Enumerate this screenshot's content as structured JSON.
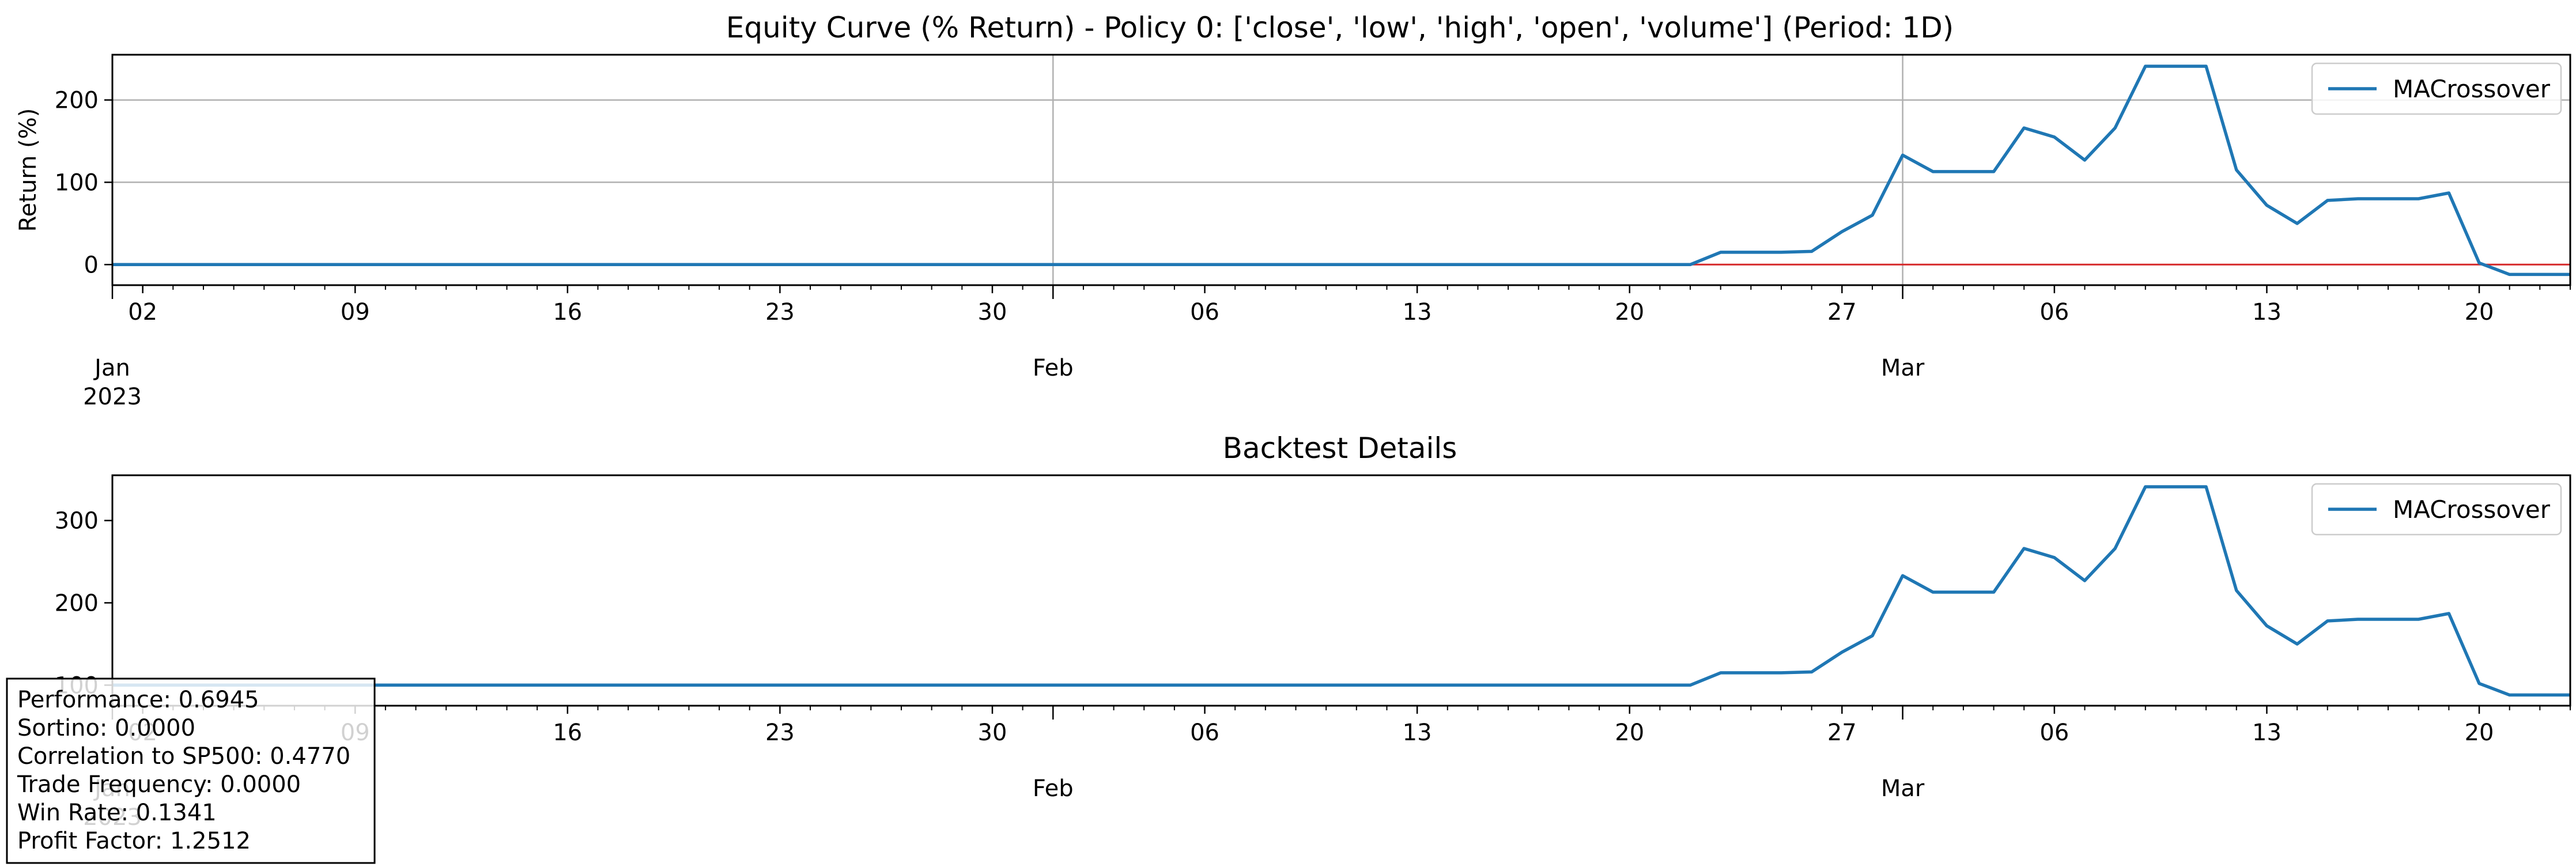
{
  "chart_data": [
    {
      "type": "line",
      "title": "Equity Curve (% Return) - Policy 0: ['close', 'low', 'high', 'open', 'volume'] (Period: 1D)",
      "xlabel": "",
      "ylabel": "Return (%)",
      "x_start": "2023-01-01",
      "x_end": "2023-03-23",
      "ylim": [
        -25,
        255
      ],
      "yticks": [
        0,
        100,
        200
      ],
      "grid": true,
      "legend_placement": "top-right",
      "reference_line": {
        "y": 0,
        "color": "#d62728"
      },
      "series": [
        {
          "name": "MACrossover",
          "color": "#1f77b4",
          "x": [
            "2023-01-01",
            "2023-02-22",
            "2023-02-23",
            "2023-02-24",
            "2023-02-25",
            "2023-02-26",
            "2023-02-27",
            "2023-02-28",
            "2023-03-01",
            "2023-03-02",
            "2023-03-03",
            "2023-03-04",
            "2023-03-05",
            "2023-03-06",
            "2023-03-07",
            "2023-03-08",
            "2023-03-09",
            "2023-03-10",
            "2023-03-11",
            "2023-03-12",
            "2023-03-13",
            "2023-03-14",
            "2023-03-15",
            "2023-03-16",
            "2023-03-17",
            "2023-03-18",
            "2023-03-19",
            "2023-03-20",
            "2023-03-21",
            "2023-03-22",
            "2023-03-23"
          ],
          "values": [
            0,
            0,
            15,
            15,
            15,
            16,
            40,
            60,
            133,
            113,
            113,
            113,
            166,
            155,
            127,
            166,
            241,
            241,
            241,
            115,
            72,
            50,
            78,
            80,
            80,
            80,
            87,
            2,
            -12,
            -12,
            -12
          ]
        }
      ]
    },
    {
      "type": "line",
      "title": "Backtest Details",
      "xlabel": "",
      "ylabel": "",
      "x_start": "2023-01-01",
      "x_end": "2023-03-23",
      "ylim": [
        75,
        355
      ],
      "yticks": [
        100,
        200,
        300
      ],
      "grid": false,
      "legend_placement": "top-right",
      "series": [
        {
          "name": "MACrossover",
          "color": "#1f77b4",
          "x": [
            "2023-01-01",
            "2023-02-22",
            "2023-02-23",
            "2023-02-24",
            "2023-02-25",
            "2023-02-26",
            "2023-02-27",
            "2023-02-28",
            "2023-03-01",
            "2023-03-02",
            "2023-03-03",
            "2023-03-04",
            "2023-03-05",
            "2023-03-06",
            "2023-03-07",
            "2023-03-08",
            "2023-03-09",
            "2023-03-10",
            "2023-03-11",
            "2023-03-12",
            "2023-03-13",
            "2023-03-14",
            "2023-03-15",
            "2023-03-16",
            "2023-03-17",
            "2023-03-18",
            "2023-03-19",
            "2023-03-20",
            "2023-03-21",
            "2023-03-22",
            "2023-03-23"
          ],
          "values": [
            100,
            100,
            115,
            115,
            115,
            116,
            140,
            160,
            233,
            213,
            213,
            213,
            266,
            255,
            227,
            266,
            341,
            341,
            341,
            215,
            172,
            150,
            178,
            180,
            180,
            180,
            187,
            102,
            88,
            88,
            88
          ]
        }
      ]
    }
  ],
  "x_axis": {
    "tick_labels": [
      "02",
      "09",
      "16",
      "23",
      "30",
      "06",
      "13",
      "20",
      "27",
      "06",
      "13",
      "20"
    ],
    "tick_dates": [
      "2023-01-02",
      "2023-01-09",
      "2023-01-16",
      "2023-01-23",
      "2023-01-30",
      "2023-02-06",
      "2023-02-13",
      "2023-02-20",
      "2023-02-27",
      "2023-03-06",
      "2023-03-13",
      "2023-03-20"
    ],
    "month_labels": [
      "Jan\n2023",
      "Feb",
      "Mar"
    ],
    "month_dates": [
      "2023-01-01",
      "2023-02-01",
      "2023-03-01"
    ]
  },
  "stats_box": {
    "lines": [
      "Performance: 0.6945",
      "Sortino: 0.0000",
      "Correlation to SP500: 0.4770",
      "Trade Frequency: 0.0000",
      "Win Rate: 0.1341",
      "Profit Factor: 1.2512"
    ]
  }
}
